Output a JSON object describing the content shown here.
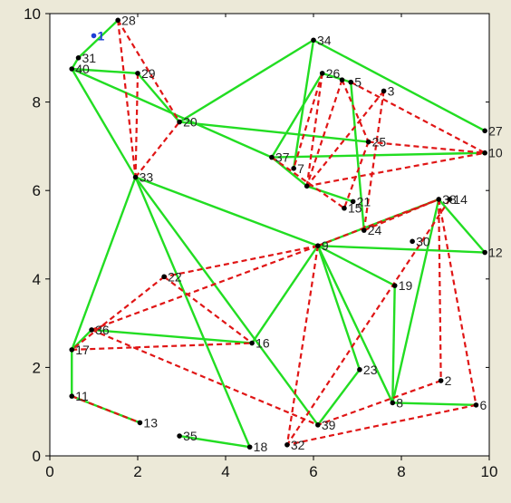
{
  "chart_data": {
    "type": "scatter",
    "title": "",
    "xlabel": "",
    "ylabel": "",
    "xlim": [
      0,
      10
    ],
    "ylim": [
      0,
      10
    ],
    "xticks": [
      "0",
      "2",
      "4",
      "6",
      "8",
      "10"
    ],
    "yticks": [
      "0",
      "2",
      "4",
      "6",
      "8",
      "10"
    ],
    "grid": false,
    "colors": {
      "background": "#ece9d8",
      "plot_area": "#ffffff",
      "point": "#000000",
      "highlight_point": "#1f3fd6",
      "solid_edge": "#22dd22",
      "dashed_edge": "#e01515",
      "label": "#222222"
    },
    "nodes": [
      {
        "id": "1",
        "x": 1.0,
        "y": 9.5,
        "highlight": true
      },
      {
        "id": "2",
        "x": 8.9,
        "y": 1.7
      },
      {
        "id": "3",
        "x": 7.6,
        "y": 8.25
      },
      {
        "id": "5",
        "x": 6.85,
        "y": 8.45
      },
      {
        "id": "6",
        "x": 9.7,
        "y": 1.15
      },
      {
        "id": "7",
        "x": 5.55,
        "y": 6.5
      },
      {
        "id": "8",
        "x": 7.8,
        "y": 1.2
      },
      {
        "id": "9",
        "x": 6.1,
        "y": 4.75
      },
      {
        "id": "10",
        "x": 9.9,
        "y": 6.85
      },
      {
        "id": "11",
        "x": 0.5,
        "y": 1.35
      },
      {
        "id": "12",
        "x": 9.9,
        "y": 4.6
      },
      {
        "id": "13",
        "x": 2.05,
        "y": 0.75
      },
      {
        "id": "14",
        "x": 9.1,
        "y": 5.8
      },
      {
        "id": "16",
        "x": 4.6,
        "y": 2.55
      },
      {
        "id": "17",
        "x": 0.5,
        "y": 2.4
      },
      {
        "id": "18",
        "x": 4.55,
        "y": 0.2
      },
      {
        "id": "19",
        "x": 7.85,
        "y": 3.85
      },
      {
        "id": "20",
        "x": 2.95,
        "y": 7.55
      },
      {
        "id": "21",
        "x": 6.9,
        "y": 5.75
      },
      {
        "id": "22",
        "x": 2.6,
        "y": 4.05
      },
      {
        "id": "23",
        "x": 7.05,
        "y": 1.95
      },
      {
        "id": "24",
        "x": 7.15,
        "y": 5.1
      },
      {
        "id": "25",
        "x": 7.25,
        "y": 7.1
      },
      {
        "id": "26",
        "x": 6.2,
        "y": 8.65
      },
      {
        "id": "27",
        "x": 9.9,
        "y": 7.35
      },
      {
        "id": "28",
        "x": 1.55,
        "y": 9.85
      },
      {
        "id": "29",
        "x": 2.0,
        "y": 8.65
      },
      {
        "id": "30",
        "x": 8.25,
        "y": 4.85
      },
      {
        "id": "31",
        "x": 0.65,
        "y": 9.0
      },
      {
        "id": "32",
        "x": 5.4,
        "y": 0.25
      },
      {
        "id": "33",
        "x": 1.95,
        "y": 6.3
      },
      {
        "id": "34",
        "x": 6.0,
        "y": 9.4
      },
      {
        "id": "35",
        "x": 2.95,
        "y": 0.45
      },
      {
        "id": "36",
        "x": 0.95,
        "y": 2.85
      },
      {
        "id": "37",
        "x": 5.05,
        "y": 6.75
      },
      {
        "id": "38",
        "x": 8.85,
        "y": 5.8
      },
      {
        "id": "39",
        "x": 6.1,
        "y": 0.7
      },
      {
        "id": "40",
        "x": 0.5,
        "y": 8.75
      },
      {
        "id": "4",
        "x": 6.65,
        "y": 8.5
      },
      {
        "id": "15",
        "x": 6.7,
        "y": 5.6
      },
      {
        "id": "41",
        "x": 5.85,
        "y": 6.1
      }
    ],
    "labels": [
      {
        "node": "1",
        "text": "1"
      },
      {
        "node": "2",
        "text": "2"
      },
      {
        "node": "3",
        "text": "3"
      },
      {
        "node": "5",
        "text": "5"
      },
      {
        "node": "6",
        "text": "6"
      },
      {
        "node": "7",
        "text": "7"
      },
      {
        "node": "8",
        "text": "8"
      },
      {
        "node": "9",
        "text": "9"
      },
      {
        "node": "10",
        "text": "10"
      },
      {
        "node": "11",
        "text": "11"
      },
      {
        "node": "12",
        "text": "12"
      },
      {
        "node": "13",
        "text": "13"
      },
      {
        "node": "14",
        "text": "14"
      },
      {
        "node": "15",
        "text": "15"
      },
      {
        "node": "16",
        "text": "16"
      },
      {
        "node": "17",
        "text": "17"
      },
      {
        "node": "18",
        "text": "18"
      },
      {
        "node": "19",
        "text": "19"
      },
      {
        "node": "20",
        "text": "20"
      },
      {
        "node": "21",
        "text": "21"
      },
      {
        "node": "22",
        "text": "22"
      },
      {
        "node": "23",
        "text": "23"
      },
      {
        "node": "24",
        "text": "24"
      },
      {
        "node": "25",
        "text": "25"
      },
      {
        "node": "26",
        "text": "26"
      },
      {
        "node": "27",
        "text": "27"
      },
      {
        "node": "28",
        "text": "28"
      },
      {
        "node": "29",
        "text": "29"
      },
      {
        "node": "30",
        "text": "30"
      },
      {
        "node": "31",
        "text": "31"
      },
      {
        "node": "32",
        "text": "32"
      },
      {
        "node": "33",
        "text": "33"
      },
      {
        "node": "34",
        "text": "34"
      },
      {
        "node": "35",
        "text": "35"
      },
      {
        "node": "36",
        "text": "36"
      },
      {
        "node": "38",
        "text": "38"
      },
      {
        "node": "39",
        "text": "39"
      },
      {
        "node": "40",
        "text": "40"
      },
      {
        "node": "37",
        "text": "37"
      }
    ],
    "solid_edges": [
      [
        "28",
        "31"
      ],
      [
        "31",
        "40"
      ],
      [
        "40",
        "29"
      ],
      [
        "29",
        "20"
      ],
      [
        "40",
        "37"
      ],
      [
        "40",
        "33"
      ],
      [
        "20",
        "34"
      ],
      [
        "34",
        "27"
      ],
      [
        "20",
        "25"
      ],
      [
        "37",
        "10"
      ],
      [
        "34",
        "7"
      ],
      [
        "26",
        "5"
      ],
      [
        "5",
        "24"
      ],
      [
        "33",
        "9"
      ],
      [
        "33",
        "17"
      ],
      [
        "33",
        "39"
      ],
      [
        "33",
        "18"
      ],
      [
        "9",
        "12"
      ],
      [
        "9",
        "19"
      ],
      [
        "9",
        "8"
      ],
      [
        "9",
        "23"
      ],
      [
        "9",
        "38"
      ],
      [
        "17",
        "11"
      ],
      [
        "11",
        "13"
      ],
      [
        "17",
        "36"
      ],
      [
        "36",
        "16"
      ],
      [
        "16",
        "9"
      ],
      [
        "35",
        "18"
      ],
      [
        "19",
        "8"
      ],
      [
        "8",
        "38"
      ],
      [
        "38",
        "12"
      ],
      [
        "8",
        "6"
      ],
      [
        "39",
        "23"
      ],
      [
        "37",
        "26"
      ],
      [
        "41",
        "21"
      ],
      [
        "37",
        "41"
      ]
    ],
    "dashed_edges": [
      [
        "28",
        "33"
      ],
      [
        "28",
        "20"
      ],
      [
        "29",
        "33"
      ],
      [
        "33",
        "20"
      ],
      [
        "26",
        "7"
      ],
      [
        "26",
        "41"
      ],
      [
        "4",
        "41"
      ],
      [
        "3",
        "41"
      ],
      [
        "3",
        "24"
      ],
      [
        "25",
        "15"
      ],
      [
        "25",
        "10"
      ],
      [
        "5",
        "10"
      ],
      [
        "41",
        "10"
      ],
      [
        "4",
        "25"
      ],
      [
        "9",
        "22"
      ],
      [
        "9",
        "36"
      ],
      [
        "9",
        "38"
      ],
      [
        "9",
        "32"
      ],
      [
        "22",
        "16"
      ],
      [
        "22",
        "17"
      ],
      [
        "17",
        "16"
      ],
      [
        "36",
        "39"
      ],
      [
        "38",
        "2"
      ],
      [
        "38",
        "6"
      ],
      [
        "2",
        "39"
      ],
      [
        "6",
        "32"
      ],
      [
        "14",
        "32"
      ],
      [
        "11",
        "13"
      ],
      [
        "24",
        "38"
      ],
      [
        "37",
        "15"
      ]
    ]
  }
}
